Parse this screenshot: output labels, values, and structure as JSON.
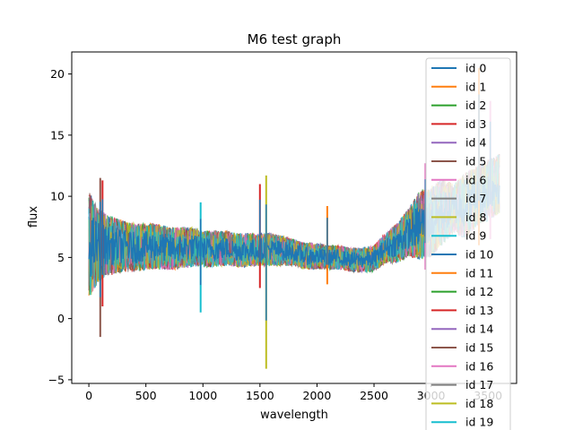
{
  "chart_data": {
    "type": "line",
    "title": "M6 test graph",
    "xlabel": "wavelength",
    "ylabel": "flux",
    "xlim": [
      -150,
      3750
    ],
    "ylim": [
      -5.3,
      21.8
    ],
    "xticks": [
      0,
      500,
      1000,
      1500,
      2000,
      2500,
      3000,
      3500
    ],
    "yticks": [
      -5,
      0,
      5,
      10,
      15,
      20
    ],
    "grid": false,
    "legend_position": "top-right",
    "envelope": {
      "x": [
        0,
        50,
        100,
        150,
        200,
        300,
        400,
        500,
        600,
        700,
        800,
        900,
        1000,
        1100,
        1200,
        1300,
        1400,
        1500,
        1600,
        1700,
        1800,
        1900,
        2000,
        2100,
        2200,
        2300,
        2400,
        2500,
        2600,
        2700,
        2800,
        2900,
        3000,
        3100,
        3200,
        3300,
        3400,
        3500,
        3600
      ],
      "low": [
        1.5,
        2.5,
        3.0,
        3.5,
        3.5,
        3.8,
        3.8,
        4.0,
        4.0,
        4.0,
        4.0,
        4.2,
        4.2,
        4.2,
        4.3,
        4.2,
        4.2,
        4.3,
        4.3,
        4.3,
        4.3,
        4.0,
        4.0,
        4.0,
        4.0,
        3.8,
        3.8,
        3.8,
        4.5,
        4.5,
        5.0,
        4.8,
        5.0,
        6.0,
        7.0,
        6.5,
        7.5,
        8.0,
        8.5
      ],
      "high": [
        10.5,
        9.5,
        9.0,
        8.5,
        8.5,
        8.0,
        7.8,
        7.8,
        7.8,
        7.5,
        7.5,
        7.5,
        7.2,
        7.2,
        7.2,
        7.0,
        7.0,
        7.0,
        7.0,
        6.8,
        6.5,
        6.2,
        6.2,
        6.0,
        6.0,
        5.8,
        5.8,
        6.0,
        7.0,
        7.8,
        9.0,
        10.5,
        10.8,
        11.5,
        11.0,
        12.0,
        12.5,
        13.0,
        13.5
      ]
    },
    "spikes": [
      {
        "x": 100,
        "low": -1.5,
        "high": 11.5
      },
      {
        "x": 120,
        "low": 1.0,
        "high": 11.3
      },
      {
        "x": 980,
        "low": 0.5,
        "high": 9.5
      },
      {
        "x": 1500,
        "low": 2.5,
        "high": 11.0
      },
      {
        "x": 1555,
        "low": -4.1,
        "high": 11.7
      },
      {
        "x": 2090,
        "low": 2.8,
        "high": 9.2
      },
      {
        "x": 2950,
        "low": 4.0,
        "high": 12.7
      },
      {
        "x": 3420,
        "low": 6.0,
        "high": 20.5
      },
      {
        "x": 3520,
        "low": 6.5,
        "high": 17.8
      }
    ],
    "series": [
      {
        "name": "id 0",
        "color": "#1f77b4"
      },
      {
        "name": "id 1",
        "color": "#ff7f0e"
      },
      {
        "name": "id 2",
        "color": "#2ca02c"
      },
      {
        "name": "id 3",
        "color": "#d62728"
      },
      {
        "name": "id 4",
        "color": "#9467bd"
      },
      {
        "name": "id 5",
        "color": "#8c564b"
      },
      {
        "name": "id 6",
        "color": "#e377c2"
      },
      {
        "name": "id 7",
        "color": "#7f7f7f"
      },
      {
        "name": "id 8",
        "color": "#bcbd22"
      },
      {
        "name": "id 9",
        "color": "#17becf"
      },
      {
        "name": "id 10",
        "color": "#1f77b4"
      },
      {
        "name": "id 11",
        "color": "#ff7f0e"
      },
      {
        "name": "id 12",
        "color": "#2ca02c"
      },
      {
        "name": "id 13",
        "color": "#d62728"
      },
      {
        "name": "id 14",
        "color": "#9467bd"
      },
      {
        "name": "id 15",
        "color": "#8c564b"
      },
      {
        "name": "id 16",
        "color": "#e377c2"
      },
      {
        "name": "id 17",
        "color": "#7f7f7f"
      },
      {
        "name": "id 18",
        "color": "#bcbd22"
      },
      {
        "name": "id 19",
        "color": "#17becf"
      }
    ]
  }
}
